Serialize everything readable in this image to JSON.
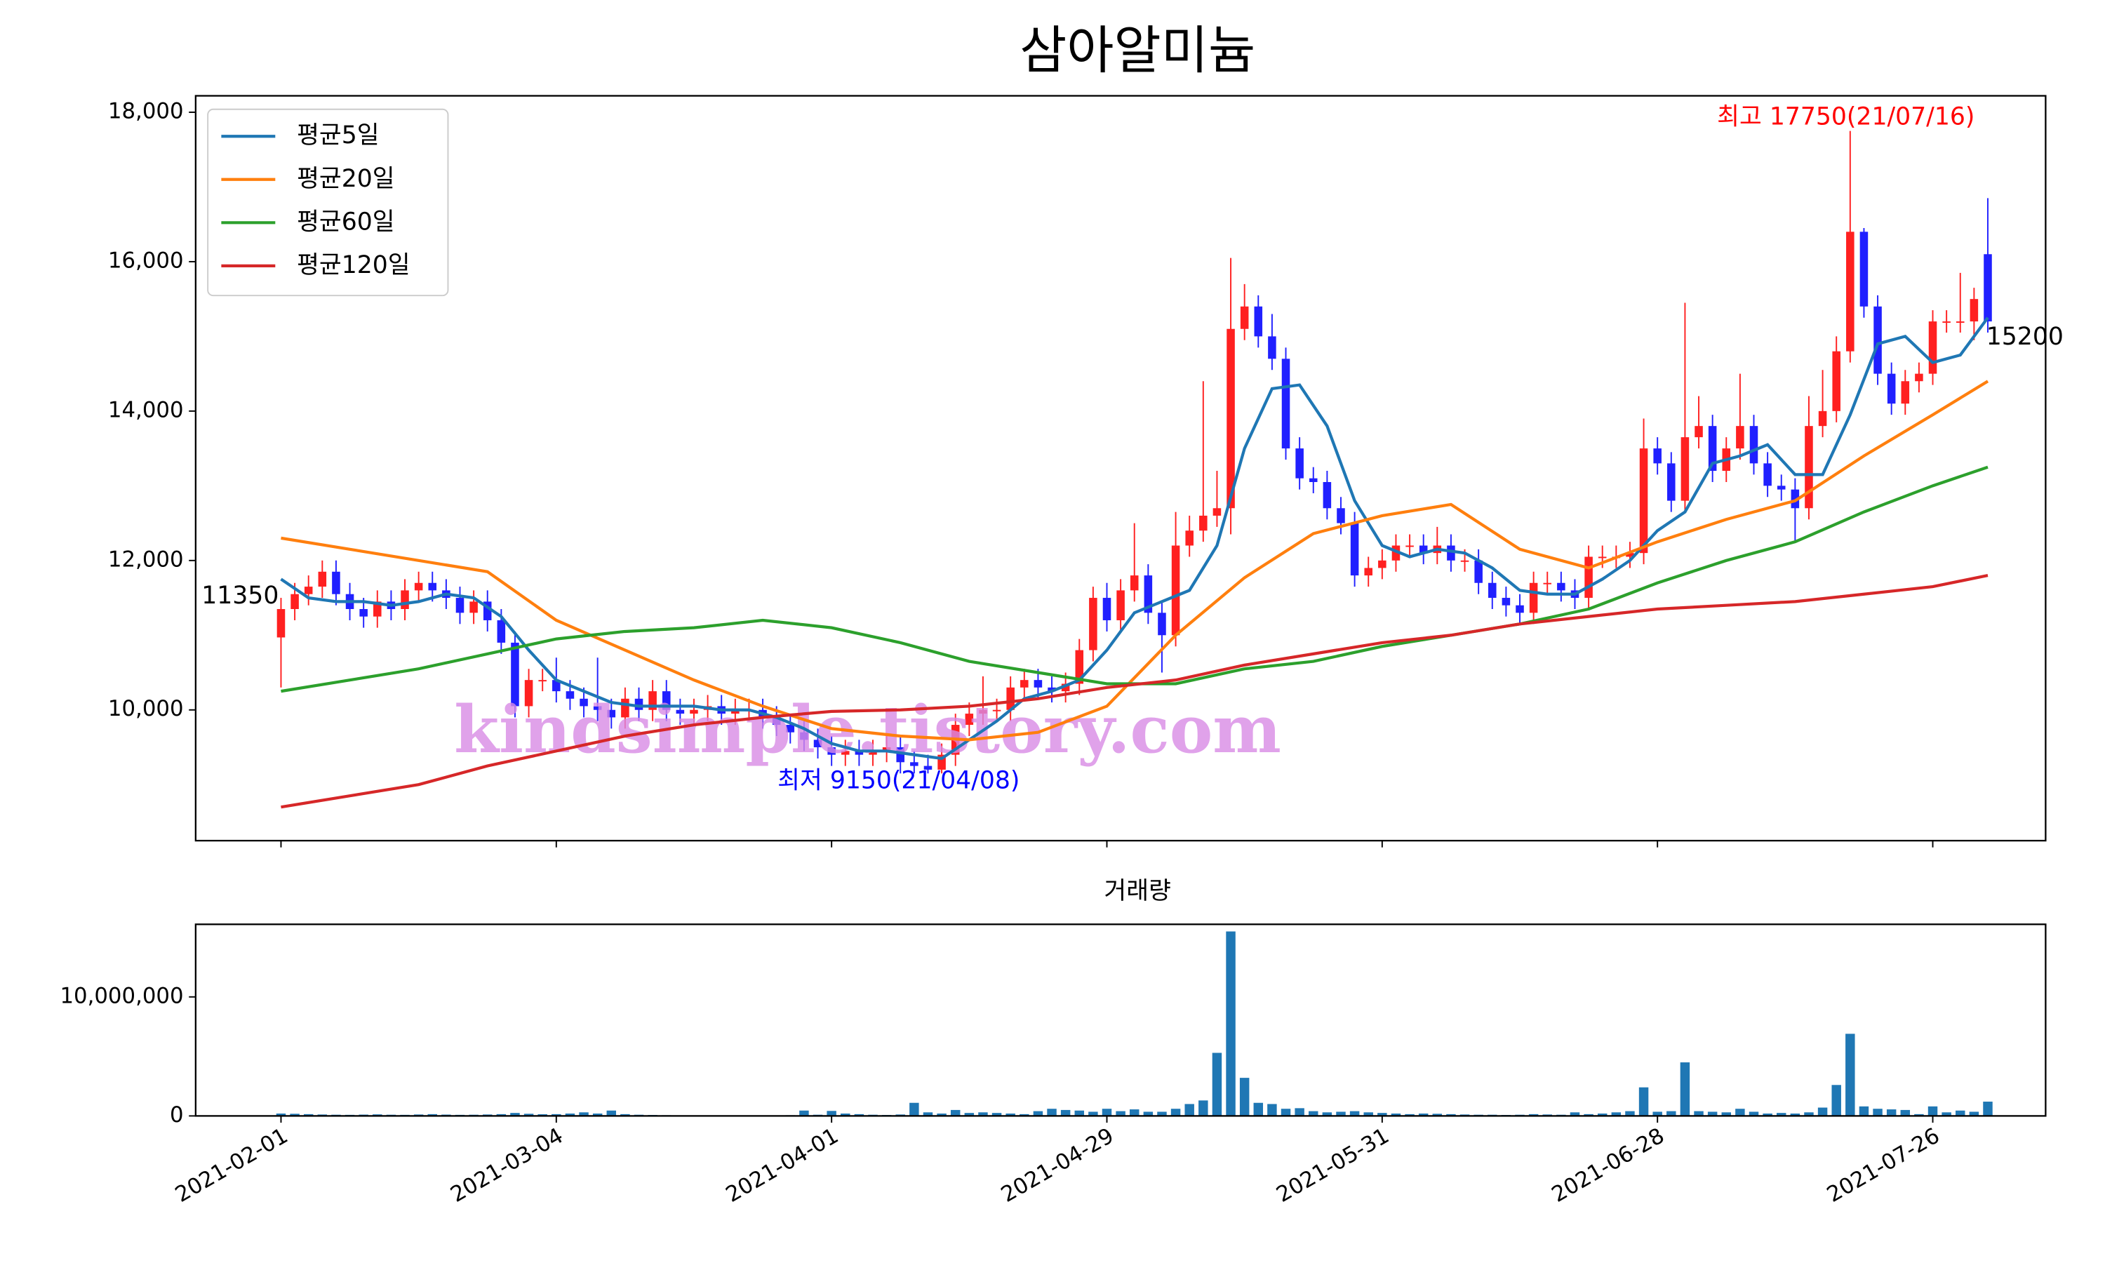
{
  "chart_data": [
    {
      "type": "candlestick",
      "title": "삼아알미늄",
      "open": [
        10970,
        11350,
        11550,
        11650,
        11850,
        11550,
        11350,
        11250,
        11450,
        11350,
        11600,
        11700,
        11600,
        11500,
        11300,
        11450,
        11200,
        10900,
        10050,
        10400,
        10400,
        10250,
        10150,
        10050,
        10000,
        9900,
        10150,
        10000,
        10250,
        10000,
        9950,
        10000,
        10050,
        9950,
        10000,
        10000,
        9900,
        9800,
        9700,
        9600,
        9500,
        9400,
        9450,
        9400,
        9450,
        9500,
        9300,
        9250,
        9200,
        9400,
        9800,
        9950,
        10000,
        10000,
        10300,
        10400,
        10300,
        10250,
        10350,
        10800,
        11500,
        11200,
        11600,
        11800,
        11300,
        11000,
        12200,
        12400,
        12600,
        12700,
        15100,
        15400,
        15000,
        14700,
        13500,
        13100,
        13050,
        12700,
        12500,
        11800,
        11900,
        12000,
        12200,
        12200,
        12100,
        12200,
        12000,
        12000,
        11700,
        11500,
        11400,
        11300,
        11700,
        11700,
        11600,
        11500,
        12050,
        12050,
        12050,
        12100,
        13500,
        13300,
        12800,
        13650,
        13800,
        13200,
        13500,
        13800,
        13300,
        13000,
        12950,
        12700,
        13800,
        14000,
        14800,
        16400,
        15400,
        14500,
        14100,
        14400,
        14500,
        15200,
        15200,
        15200,
        16100
      ],
      "high": [
        11500,
        11700,
        11800,
        12000,
        12000,
        11700,
        11500,
        11600,
        11600,
        11750,
        11850,
        11850,
        11750,
        11650,
        11600,
        11600,
        11350,
        11050,
        10550,
        10550,
        10700,
        10400,
        10300,
        10700,
        10150,
        10300,
        10300,
        10400,
        10400,
        10150,
        10150,
        10200,
        10200,
        10150,
        10150,
        10150,
        10050,
        9950,
        9850,
        9750,
        9650,
        9600,
        9600,
        9600,
        9650,
        9650,
        9450,
        9400,
        9550,
        9950,
        10100,
        10450,
        10150,
        10450,
        10550,
        10550,
        10450,
        10500,
        10950,
        11650,
        11700,
        11750,
        12500,
        11950,
        11450,
        12650,
        12600,
        14400,
        13200,
        16050,
        15700,
        15550,
        15300,
        14850,
        13650,
        13250,
        13200,
        12850,
        12650,
        12050,
        12150,
        12350,
        12350,
        12350,
        12450,
        12350,
        12150,
        12150,
        11850,
        11650,
        11550,
        11850,
        11850,
        11850,
        11750,
        12200,
        12200,
        12200,
        12250,
        13900,
        13650,
        13450,
        15450,
        14200,
        13950,
        13650,
        14500,
        13950,
        13450,
        13150,
        13100,
        14200,
        14550,
        15000,
        17750,
        16450,
        15550,
        14650,
        14550,
        14650,
        15350,
        15350,
        15850,
        15650,
        16850
      ],
      "low": [
        10300,
        11200,
        11400,
        11500,
        11400,
        11200,
        11100,
        11100,
        11200,
        11200,
        11450,
        11450,
        11350,
        11150,
        11150,
        11050,
        10750,
        9900,
        9900,
        10250,
        10100,
        10000,
        9900,
        9850,
        9750,
        9750,
        9850,
        9850,
        9850,
        9800,
        9800,
        9850,
        9800,
        9800,
        9850,
        9750,
        9650,
        9550,
        9450,
        9350,
        9250,
        9250,
        9250,
        9250,
        9300,
        9150,
        9150,
        9150,
        9150,
        9250,
        9650,
        9800,
        9850,
        9850,
        10150,
        10150,
        10100,
        10100,
        10200,
        10650,
        11050,
        11050,
        11450,
        11150,
        10500,
        10850,
        12050,
        12250,
        12450,
        12350,
        14950,
        14850,
        14550,
        13350,
        12950,
        12900,
        12550,
        12350,
        11650,
        11650,
        11750,
        11850,
        12050,
        11950,
        11950,
        11850,
        11850,
        11550,
        11350,
        11250,
        11150,
        11150,
        11550,
        11450,
        11350,
        11350,
        11900,
        11900,
        11900,
        11950,
        13150,
        12650,
        12650,
        13500,
        13050,
        13050,
        13350,
        13150,
        12850,
        12800,
        12250,
        12550,
        13650,
        13850,
        14650,
        15250,
        14350,
        13950,
        13950,
        14250,
        14350,
        15050,
        15050,
        14950,
        15050
      ],
      "close": [
        11350,
        11550,
        11650,
        11850,
        11550,
        11350,
        11250,
        11450,
        11350,
        11600,
        11700,
        11600,
        11500,
        11300,
        11450,
        11200,
        10900,
        10050,
        10400,
        10400,
        10250,
        10150,
        10050,
        10000,
        9900,
        10150,
        10000,
        10250,
        10000,
        9950,
        10000,
        10050,
        9950,
        10000,
        10000,
        9900,
        9800,
        9700,
        9600,
        9500,
        9400,
        9450,
        9400,
        9450,
        9500,
        9300,
        9250,
        9200,
        9400,
        9800,
        9950,
        10000,
        10000,
        10300,
        10400,
        10300,
        10250,
        10350,
        10800,
        11500,
        11200,
        11600,
        11800,
        11300,
        11000,
        12200,
        12400,
        12600,
        12700,
        15100,
        15400,
        15000,
        14700,
        13500,
        13100,
        13050,
        12700,
        12500,
        11800,
        11900,
        12000,
        12200,
        12200,
        12100,
        12200,
        12000,
        12000,
        11700,
        11500,
        11400,
        11300,
        11700,
        11700,
        11600,
        11500,
        12050,
        12050,
        12050,
        12100,
        13500,
        13300,
        12800,
        13650,
        13800,
        13200,
        13500,
        13800,
        13300,
        13000,
        12950,
        12700,
        13800,
        14000,
        14800,
        16400,
        15400,
        14500,
        14100,
        14400,
        14500,
        15200,
        15200,
        15200,
        15500,
        15200
      ],
      "up_color": "#ff2020",
      "down_color": "#2020ff",
      "series": [
        {
          "name": "평균5일",
          "color": "#1f77b4",
          "x": [
            0,
            2,
            4,
            6,
            8,
            10,
            12,
            14,
            16,
            18,
            20,
            22,
            24,
            26,
            28,
            30,
            32,
            34,
            36,
            38,
            40,
            42,
            44,
            46,
            48,
            50,
            52,
            54,
            56,
            58,
            60,
            62,
            64,
            66,
            68,
            70,
            72,
            74,
            76,
            78,
            80,
            82,
            84,
            86,
            88,
            90,
            92,
            94,
            96,
            98,
            100,
            102,
            104,
            106,
            108,
            110,
            112,
            114,
            116,
            118,
            120,
            122,
            124
          ],
          "values": [
            11750,
            11500,
            11450,
            11450,
            11400,
            11450,
            11550,
            11500,
            11250,
            10800,
            10400,
            10250,
            10100,
            10050,
            10050,
            10050,
            10000,
            10000,
            9900,
            9750,
            9550,
            9450,
            9450,
            9400,
            9350,
            9600,
            9850,
            10150,
            10250,
            10400,
            10800,
            11300,
            11450,
            11600,
            12200,
            13500,
            14300,
            14350,
            13800,
            12800,
            12200,
            12050,
            12150,
            12100,
            11900,
            11600,
            11550,
            11550,
            11750,
            12000,
            12400,
            12650,
            13300,
            13400,
            13550,
            13150,
            13150,
            13950,
            14900,
            15000,
            14650,
            14750,
            15250
          ]
        },
        {
          "name": "평균20일",
          "color": "#ff7f0e",
          "x": [
            0,
            5,
            10,
            15,
            20,
            25,
            30,
            35,
            40,
            45,
            50,
            55,
            60,
            65,
            70,
            75,
            80,
            85,
            90,
            95,
            100,
            105,
            110,
            115,
            120,
            124
          ],
          "values": [
            12300,
            12150,
            12000,
            11850,
            11200,
            10800,
            10400,
            10050,
            9750,
            9650,
            9600,
            9700,
            10050,
            11000,
            11770,
            12360,
            12600,
            12750,
            12150,
            11900,
            12250,
            12550,
            12800,
            13400,
            13950,
            14400
          ]
        },
        {
          "name": "평균60일",
          "color": "#2ca02c",
          "x": [
            0,
            5,
            10,
            15,
            20,
            25,
            30,
            35,
            40,
            45,
            50,
            55,
            60,
            65,
            70,
            75,
            80,
            85,
            90,
            95,
            100,
            105,
            110,
            115,
            120,
            124
          ],
          "values": [
            10250,
            10400,
            10550,
            10750,
            10950,
            11050,
            11100,
            11200,
            11100,
            10900,
            10650,
            10500,
            10350,
            10350,
            10550,
            10650,
            10850,
            11000,
            11150,
            11350,
            11700,
            12000,
            12250,
            12650,
            13000,
            13250
          ]
        },
        {
          "name": "평균120일",
          "color": "#d62728",
          "x": [
            0,
            5,
            10,
            15,
            20,
            25,
            30,
            35,
            40,
            45,
            50,
            55,
            60,
            65,
            70,
            75,
            80,
            85,
            90,
            95,
            100,
            105,
            110,
            115,
            120,
            124
          ],
          "values": [
            8700,
            8850,
            9000,
            9250,
            9450,
            9650,
            9800,
            9900,
            9980,
            10000,
            10050,
            10150,
            10300,
            10400,
            10600,
            10750,
            10900,
            11000,
            11150,
            11250,
            11350,
            11400,
            11450,
            11550,
            11650,
            11800
          ]
        }
      ],
      "annotations": [
        {
          "text": "최고 17750(21/07/16)",
          "color": "#ff0000"
        },
        {
          "text": "최저 9150(21/04/08)",
          "color": "#0000ff"
        },
        {
          "text": "11350",
          "color": "#000000"
        },
        {
          "text": "15200",
          "color": "#000000"
        }
      ],
      "watermark": "kindsimple.tistory.com",
      "legend": "upper left",
      "xlim": [
        -6.2,
        128.2
      ],
      "ylim": [
        8250,
        18220
      ],
      "yticks": [
        {
          "value": 10000,
          "label": "10,000"
        },
        {
          "value": 12000,
          "label": "12,000"
        },
        {
          "value": 14000,
          "label": "14,000"
        },
        {
          "value": 16000,
          "label": "16,000"
        },
        {
          "value": 18000,
          "label": "18,000"
        }
      ]
    },
    {
      "type": "bar",
      "title": "거래량",
      "color": "#1f77b4",
      "values": [
        200000,
        180000,
        150000,
        120000,
        100000,
        90000,
        110000,
        130000,
        100000,
        90000,
        120000,
        150000,
        110000,
        90000,
        100000,
        120000,
        150000,
        250000,
        180000,
        140000,
        150000,
        200000,
        300000,
        200000,
        450000,
        150000,
        100000,
        80000,
        60000,
        50000,
        40000,
        30000,
        30000,
        40000,
        50000,
        40000,
        30000,
        60000,
        450000,
        100000,
        420000,
        200000,
        150000,
        100000,
        80000,
        120000,
        1100000,
        300000,
        200000,
        500000,
        250000,
        300000,
        250000,
        200000,
        150000,
        400000,
        600000,
        500000,
        450000,
        350000,
        600000,
        400000,
        550000,
        350000,
        350000,
        600000,
        1000000,
        1300000,
        5300000,
        15500000,
        3200000,
        1100000,
        1000000,
        600000,
        650000,
        400000,
        300000,
        350000,
        400000,
        300000,
        250000,
        200000,
        150000,
        200000,
        180000,
        150000,
        120000,
        100000,
        100000,
        80000,
        100000,
        150000,
        120000,
        100000,
        300000,
        150000,
        200000,
        300000,
        400000,
        2400000,
        350000,
        400000,
        4500000,
        400000,
        350000,
        300000,
        600000,
        350000,
        200000,
        250000,
        200000,
        300000,
        700000,
        2600000,
        6900000,
        800000,
        600000,
        550000,
        500000,
        150000,
        800000,
        300000,
        450000,
        350000,
        1200000
      ],
      "xlim": [
        -6.2,
        128.2
      ],
      "xticks": [
        {
          "value": 0,
          "label": "2021-02-01"
        },
        {
          "value": 20,
          "label": "2021-03-04"
        },
        {
          "value": 40,
          "label": "2021-04-01"
        },
        {
          "value": 60,
          "label": "2021-04-29"
        },
        {
          "value": 80,
          "label": "2021-05-31"
        },
        {
          "value": 100,
          "label": "2021-06-28"
        },
        {
          "value": 120,
          "label": "2021-07-26"
        }
      ],
      "ylim": [
        0,
        16100000
      ],
      "yticks": [
        0,
        {
          "value": 10000000,
          "label": "10,000,000"
        }
      ]
    }
  ]
}
